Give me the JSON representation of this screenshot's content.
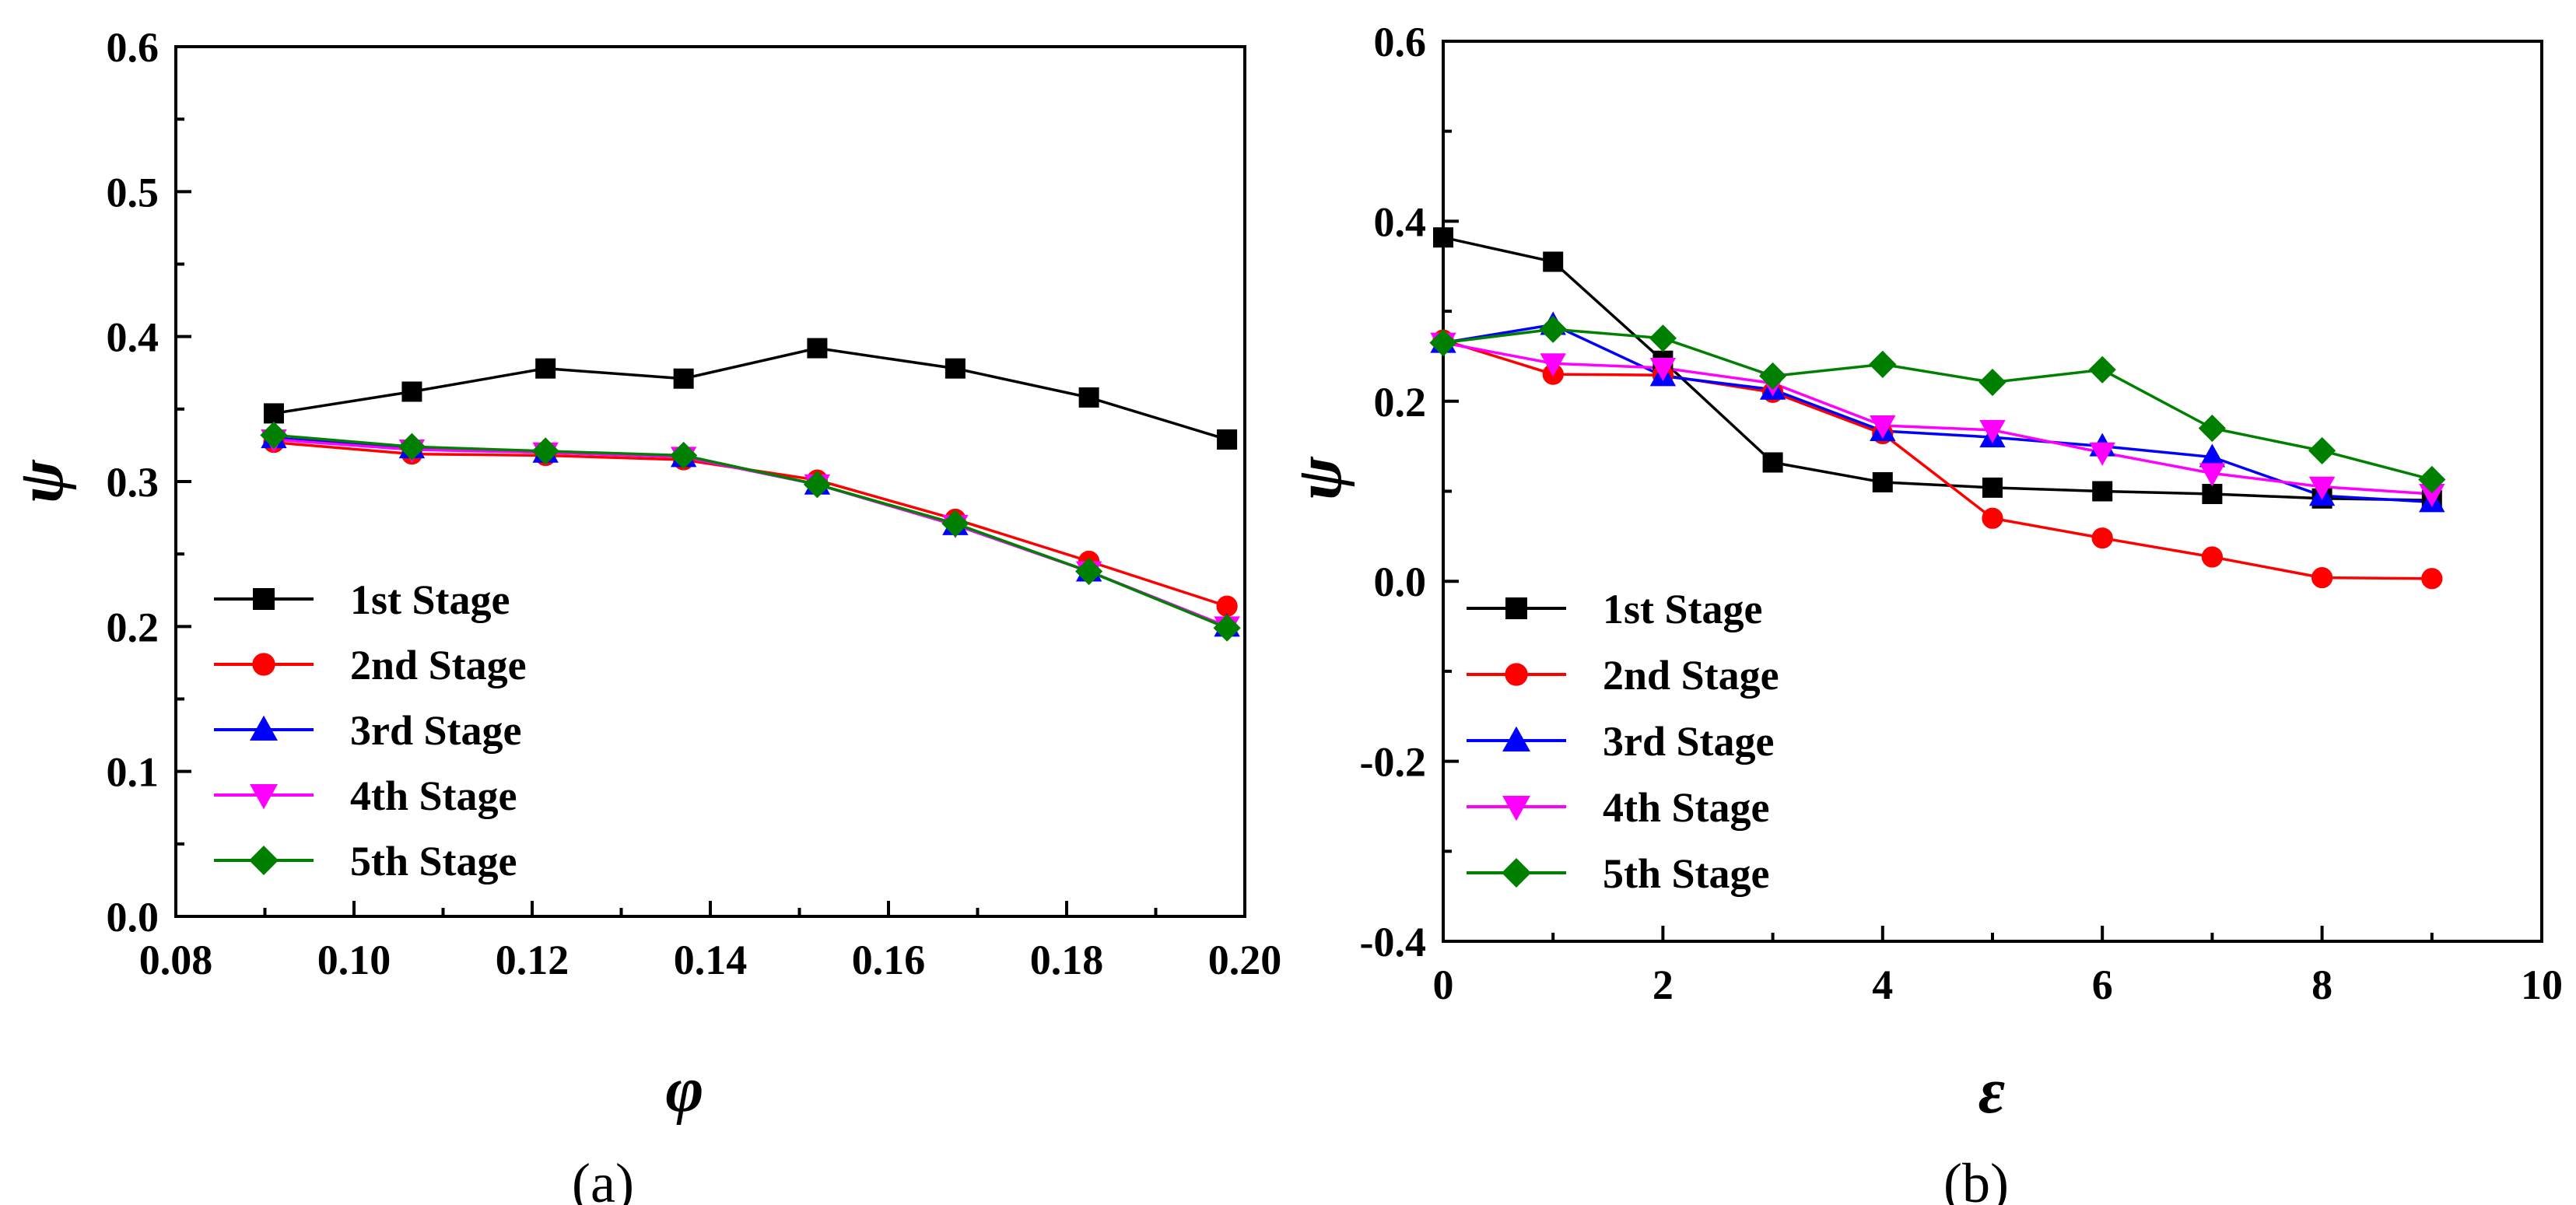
{
  "chart_data": [
    {
      "type": "line",
      "panel": "a",
      "caption": "(a)",
      "xlabel": "φ",
      "ylabel": "ψ",
      "xlim": [
        0.08,
        0.2
      ],
      "ylim": [
        0.0,
        0.6
      ],
      "xticks": [
        0.08,
        0.1,
        0.12,
        0.14,
        0.16,
        0.18,
        0.2
      ],
      "xtick_labels": [
        "0.08",
        "0.10",
        "0.12",
        "0.14",
        "0.16",
        "0.18",
        "0.20"
      ],
      "yticks": [
        0.0,
        0.1,
        0.2,
        0.3,
        0.4,
        0.5,
        0.6
      ],
      "ytick_labels": [
        "0.0",
        "0.1",
        "0.2",
        "0.3",
        "0.4",
        "0.5",
        "0.6"
      ],
      "legend_position": "bottom-left",
      "x": [
        0.091,
        0.1065,
        0.1215,
        0.137,
        0.152,
        0.1675,
        0.1825,
        0.198
      ],
      "series": [
        {
          "name": "1st Stage",
          "color": "#000000",
          "marker": "square",
          "values": [
            0.347,
            0.362,
            0.378,
            0.371,
            0.392,
            0.378,
            0.358,
            0.329
          ]
        },
        {
          "name": "2nd Stage",
          "color": "#ff0000",
          "marker": "circle",
          "values": [
            0.327,
            0.319,
            0.318,
            0.315,
            0.301,
            0.274,
            0.245,
            0.214
          ]
        },
        {
          "name": "3rd Stage",
          "color": "#0000ff",
          "marker": "triangle-up",
          "values": [
            0.33,
            0.323,
            0.32,
            0.317,
            0.298,
            0.27,
            0.238,
            0.2
          ]
        },
        {
          "name": "4th Stage",
          "color": "#ff00ff",
          "marker": "triangle-down",
          "values": [
            0.329,
            0.322,
            0.32,
            0.317,
            0.298,
            0.27,
            0.238,
            0.2
          ]
        },
        {
          "name": "5th Stage",
          "color": "#008000",
          "marker": "diamond",
          "values": [
            0.332,
            0.324,
            0.321,
            0.318,
            0.298,
            0.271,
            0.238,
            0.199
          ]
        }
      ]
    },
    {
      "type": "line",
      "panel": "b",
      "caption": "(b)",
      "xlabel": "ε",
      "ylabel": "ψ",
      "xlim": [
        0,
        10
      ],
      "ylim": [
        -0.4,
        0.6
      ],
      "xticks": [
        0,
        2,
        4,
        6,
        8,
        10
      ],
      "xtick_labels": [
        "0",
        "2",
        "4",
        "6",
        "8",
        "10"
      ],
      "yticks": [
        -0.4,
        -0.2,
        0.0,
        0.2,
        0.4,
        0.6
      ],
      "ytick_labels": [
        "-0.4",
        "-0.2",
        "0.0",
        "0.2",
        "0.4",
        "0.6"
      ],
      "legend_position": "bottom-left",
      "x": [
        0,
        1,
        2,
        3,
        4,
        5,
        6,
        7,
        8,
        9
      ],
      "series": [
        {
          "name": "1st Stage",
          "color": "#000000",
          "marker": "square",
          "values": [
            0.382,
            0.355,
            0.245,
            0.132,
            0.11,
            0.104,
            0.1,
            0.097,
            0.092,
            0.09
          ]
        },
        {
          "name": "2nd Stage",
          "color": "#ff0000",
          "marker": "circle",
          "values": [
            0.268,
            0.23,
            0.229,
            0.21,
            0.164,
            0.07,
            0.048,
            0.027,
            0.004,
            0.003
          ]
        },
        {
          "name": "3rd Stage",
          "color": "#0000ff",
          "marker": "triangle-up",
          "values": [
            0.265,
            0.285,
            0.228,
            0.213,
            0.167,
            0.16,
            0.15,
            0.138,
            0.095,
            0.088
          ]
        },
        {
          "name": "4th Stage",
          "color": "#ff00ff",
          "marker": "triangle-down",
          "values": [
            0.265,
            0.242,
            0.237,
            0.22,
            0.173,
            0.168,
            0.143,
            0.12,
            0.105,
            0.097
          ]
        },
        {
          "name": "5th Stage",
          "color": "#008000",
          "marker": "diamond",
          "values": [
            0.265,
            0.28,
            0.27,
            0.228,
            0.241,
            0.221,
            0.235,
            0.17,
            0.145,
            0.113
          ]
        }
      ]
    }
  ]
}
